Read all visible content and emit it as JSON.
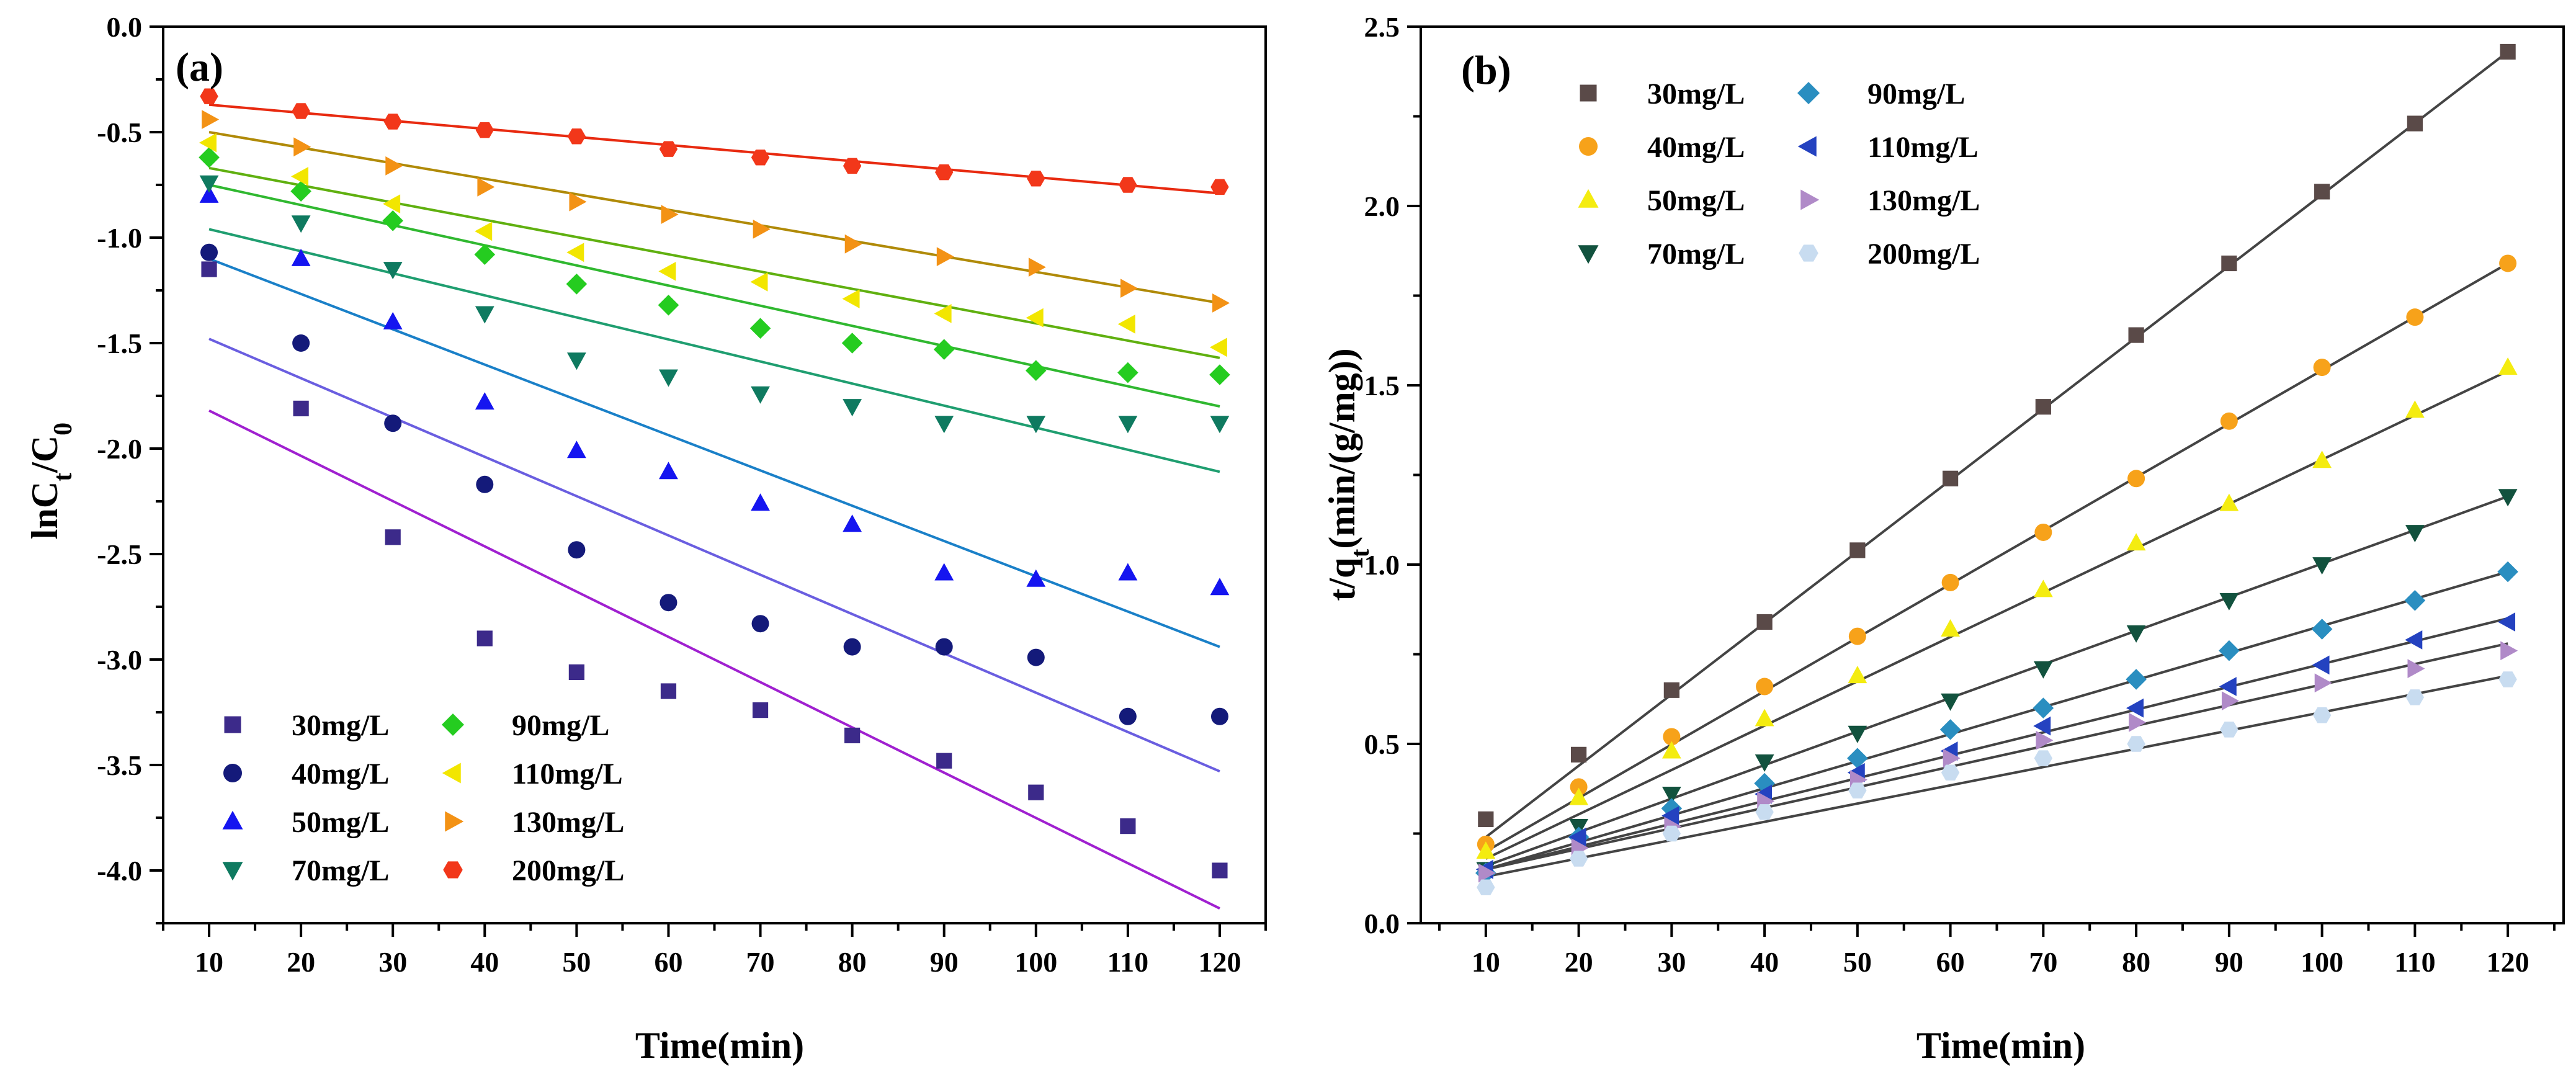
{
  "chart_data": [
    {
      "panel_label": "(a)",
      "type": "scatter",
      "xlabel": "Time(min)",
      "ylabel_main": "lnC",
      "ylabel_sub1": "t",
      "ylabel_mid": "/C",
      "ylabel_sub2": "0",
      "xlim": [
        5,
        125
      ],
      "ylim": [
        -4.25,
        0.0
      ],
      "xticks": [
        10,
        20,
        30,
        40,
        50,
        60,
        70,
        80,
        90,
        100,
        110,
        120
      ],
      "yticks": [
        0.0,
        -0.5,
        -1.0,
        -1.5,
        -2.0,
        -2.5,
        -3.0,
        -3.5,
        -4.0
      ],
      "ytick_labels": [
        "0.0",
        "-0.5",
        "-1.0",
        "-1.5",
        "-2.0",
        "-2.5",
        "-3.0",
        "-3.5",
        "-4.0"
      ],
      "legend_position": "bottom-left",
      "legend_columns": 2,
      "x": [
        10,
        20,
        30,
        40,
        50,
        60,
        70,
        80,
        90,
        100,
        110,
        120
      ],
      "series": [
        {
          "name": "30mg/L",
          "marker": "square",
          "color": "#3c2a8a",
          "values": [
            -1.15,
            -1.81,
            -2.42,
            -2.9,
            -3.06,
            -3.15,
            -3.24,
            -3.36,
            -3.48,
            -3.63,
            -3.79,
            -4.0
          ],
          "fit": [
            -1.82,
            -4.18
          ]
        },
        {
          "name": "40mg/L",
          "marker": "circle",
          "color": "#141a7a",
          "values": [
            -1.07,
            -1.5,
            -1.88,
            -2.17,
            -2.48,
            -2.73,
            -2.83,
            -2.94,
            -2.94,
            -2.99,
            -3.27,
            -3.27
          ],
          "fit": [
            -1.48,
            -3.53
          ]
        },
        {
          "name": "50mg/L",
          "marker": "triangle-up",
          "color": "#1515f0",
          "values": [
            -0.8,
            -1.1,
            -1.4,
            -1.78,
            -2.01,
            -2.11,
            -2.26,
            -2.36,
            -2.59,
            -2.62,
            -2.59,
            -2.66
          ],
          "fit": [
            -1.1,
            -2.94
          ]
        },
        {
          "name": "70mg/L",
          "marker": "triangle-down",
          "color": "#0f7a60",
          "values": [
            -0.74,
            -0.93,
            -1.15,
            -1.36,
            -1.58,
            -1.66,
            -1.74,
            -1.8,
            -1.88,
            -1.88,
            -1.88,
            -1.88
          ],
          "fit": [
            -0.96,
            -2.11
          ]
        },
        {
          "name": "90mg/L",
          "marker": "diamond",
          "color": "#25cc20",
          "values": [
            -0.62,
            -0.78,
            -0.92,
            -1.08,
            -1.22,
            -1.32,
            -1.43,
            -1.5,
            -1.53,
            -1.63,
            -1.64,
            -1.65
          ],
          "fit": [
            -0.75,
            -1.8
          ]
        },
        {
          "name": "110mg/L",
          "marker": "triangle-left",
          "color": "#f2e600",
          "values": [
            -0.55,
            -0.71,
            -0.84,
            -0.97,
            -1.07,
            -1.16,
            -1.21,
            -1.29,
            -1.36,
            -1.38,
            -1.41,
            -1.52
          ],
          "fit": [
            -0.67,
            -1.57
          ]
        },
        {
          "name": "130mg/L",
          "marker": "triangle-right",
          "color": "#f39215",
          "values": [
            -0.44,
            -0.57,
            -0.66,
            -0.76,
            -0.83,
            -0.89,
            -0.96,
            -1.03,
            -1.09,
            -1.14,
            -1.24,
            -1.31
          ],
          "fit": [
            -0.5,
            -1.31
          ]
        },
        {
          "name": "200mg/L",
          "marker": "hexagon",
          "color": "#f2371a",
          "values": [
            -0.33,
            -0.4,
            -0.45,
            -0.49,
            -0.52,
            -0.58,
            -0.62,
            -0.66,
            -0.69,
            -0.72,
            -0.75,
            -0.76
          ],
          "fit": [
            -0.37,
            -0.79
          ]
        }
      ],
      "fit_colors": [
        "#a020d0",
        "#6a5ee0",
        "#1a80c8",
        "#1f9e70",
        "#30b830",
        "#60b010",
        "#b08a08",
        "#e82a10"
      ]
    },
    {
      "panel_label": "(b)",
      "type": "scatter",
      "xlabel": "Time(min)",
      "ylabel_main": "t/q",
      "ylabel_sub1": "t",
      "ylabel_mid": "(min/(g/mg))",
      "ylabel_sub2": "",
      "xlim": [
        3,
        126
      ],
      "ylim": [
        0.0,
        2.5
      ],
      "xticks": [
        10,
        20,
        30,
        40,
        50,
        60,
        70,
        80,
        90,
        100,
        110,
        120
      ],
      "yticks": [
        0.0,
        0.5,
        1.0,
        1.5,
        2.0,
        2.5
      ],
      "ytick_labels": [
        "0.0",
        "0.5",
        "1.0",
        "1.5",
        "2.0",
        "2.5"
      ],
      "legend_position": "top-left",
      "legend_columns": 2,
      "x": [
        10,
        20,
        30,
        40,
        50,
        60,
        70,
        80,
        90,
        100,
        110,
        120
      ],
      "series": [
        {
          "name": "30mg/L",
          "marker": "square",
          "color": "#5a4a48",
          "values": [
            0.29,
            0.47,
            0.65,
            0.84,
            1.04,
            1.24,
            1.44,
            1.64,
            1.84,
            2.04,
            2.23,
            2.43
          ],
          "fit": [
            0.24,
            2.43
          ]
        },
        {
          "name": "40mg/L",
          "marker": "circle",
          "color": "#f7a21a",
          "values": [
            0.22,
            0.38,
            0.52,
            0.66,
            0.8,
            0.95,
            1.09,
            1.24,
            1.4,
            1.55,
            1.69,
            1.84
          ],
          "fit": [
            0.2,
            1.84
          ]
        },
        {
          "name": "50mg/L",
          "marker": "triangle-up",
          "color": "#f4ec10",
          "values": [
            0.2,
            0.35,
            0.48,
            0.57,
            0.69,
            0.82,
            0.93,
            1.06,
            1.17,
            1.29,
            1.43,
            1.55
          ],
          "fit": [
            0.18,
            1.54
          ]
        },
        {
          "name": "70mg/L",
          "marker": "triangle-down",
          "color": "#12523e",
          "values": [
            0.15,
            0.27,
            0.36,
            0.45,
            0.53,
            0.62,
            0.71,
            0.81,
            0.9,
            1.0,
            1.09,
            1.19
          ],
          "fit": [
            0.16,
            1.19
          ]
        },
        {
          "name": "90mg/L",
          "marker": "diamond",
          "color": "#2a8ec0",
          "values": [
            0.14,
            0.24,
            0.32,
            0.39,
            0.46,
            0.54,
            0.6,
            0.68,
            0.76,
            0.82,
            0.9,
            0.98
          ],
          "fit": [
            0.15,
            0.98
          ]
        },
        {
          "name": "110mg/L",
          "marker": "triangle-left",
          "color": "#2442c0",
          "values": [
            0.15,
            0.24,
            0.3,
            0.36,
            0.42,
            0.48,
            0.55,
            0.6,
            0.66,
            0.72,
            0.79,
            0.84
          ],
          "fit": [
            0.15,
            0.85
          ]
        },
        {
          "name": "130mg/L",
          "marker": "triangle-right",
          "color": "#b08ac8",
          "values": [
            0.14,
            0.21,
            0.27,
            0.34,
            0.4,
            0.46,
            0.51,
            0.56,
            0.62,
            0.67,
            0.71,
            0.76
          ],
          "fit": [
            0.15,
            0.78
          ]
        },
        {
          "name": "200mg/L",
          "marker": "hexagon",
          "color": "#c8dcf0",
          "values": [
            0.1,
            0.18,
            0.25,
            0.31,
            0.37,
            0.42,
            0.46,
            0.5,
            0.54,
            0.58,
            0.63,
            0.68
          ],
          "fit": [
            0.13,
            0.69
          ]
        }
      ],
      "fit_colors": [
        "#444444",
        "#444444",
        "#444444",
        "#444444",
        "#444444",
        "#444444",
        "#444444",
        "#444444"
      ]
    }
  ]
}
